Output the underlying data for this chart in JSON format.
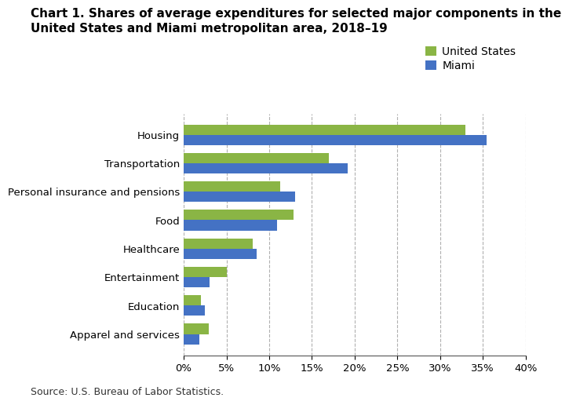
{
  "title_line1": "Chart 1. Shares of average expenditures for selected major components in the",
  "title_line2": "United States and Miami metropolitan area, 2018–19",
  "categories": [
    "Housing",
    "Transportation",
    "Personal insurance and pensions",
    "Food",
    "Healthcare",
    "Entertainment",
    "Education",
    "Apparel and services"
  ],
  "us_values": [
    33.0,
    17.0,
    11.3,
    12.8,
    8.1,
    5.0,
    2.0,
    2.9
  ],
  "miami_values": [
    35.4,
    19.2,
    13.0,
    10.9,
    8.5,
    3.0,
    2.5,
    1.8
  ],
  "us_color": "#8ab545",
  "miami_color": "#4472c4",
  "legend_labels": [
    "United States",
    "Miami"
  ],
  "xlim": [
    0,
    40
  ],
  "xticks": [
    0,
    5,
    10,
    15,
    20,
    25,
    30,
    35,
    40
  ],
  "source_text": "Source: U.S. Bureau of Labor Statistics.",
  "background_color": "#ffffff",
  "grid_color": "#b0b0b0",
  "title_fontsize": 11.0,
  "tick_fontsize": 9.5,
  "legend_fontsize": 10,
  "bar_height": 0.36
}
